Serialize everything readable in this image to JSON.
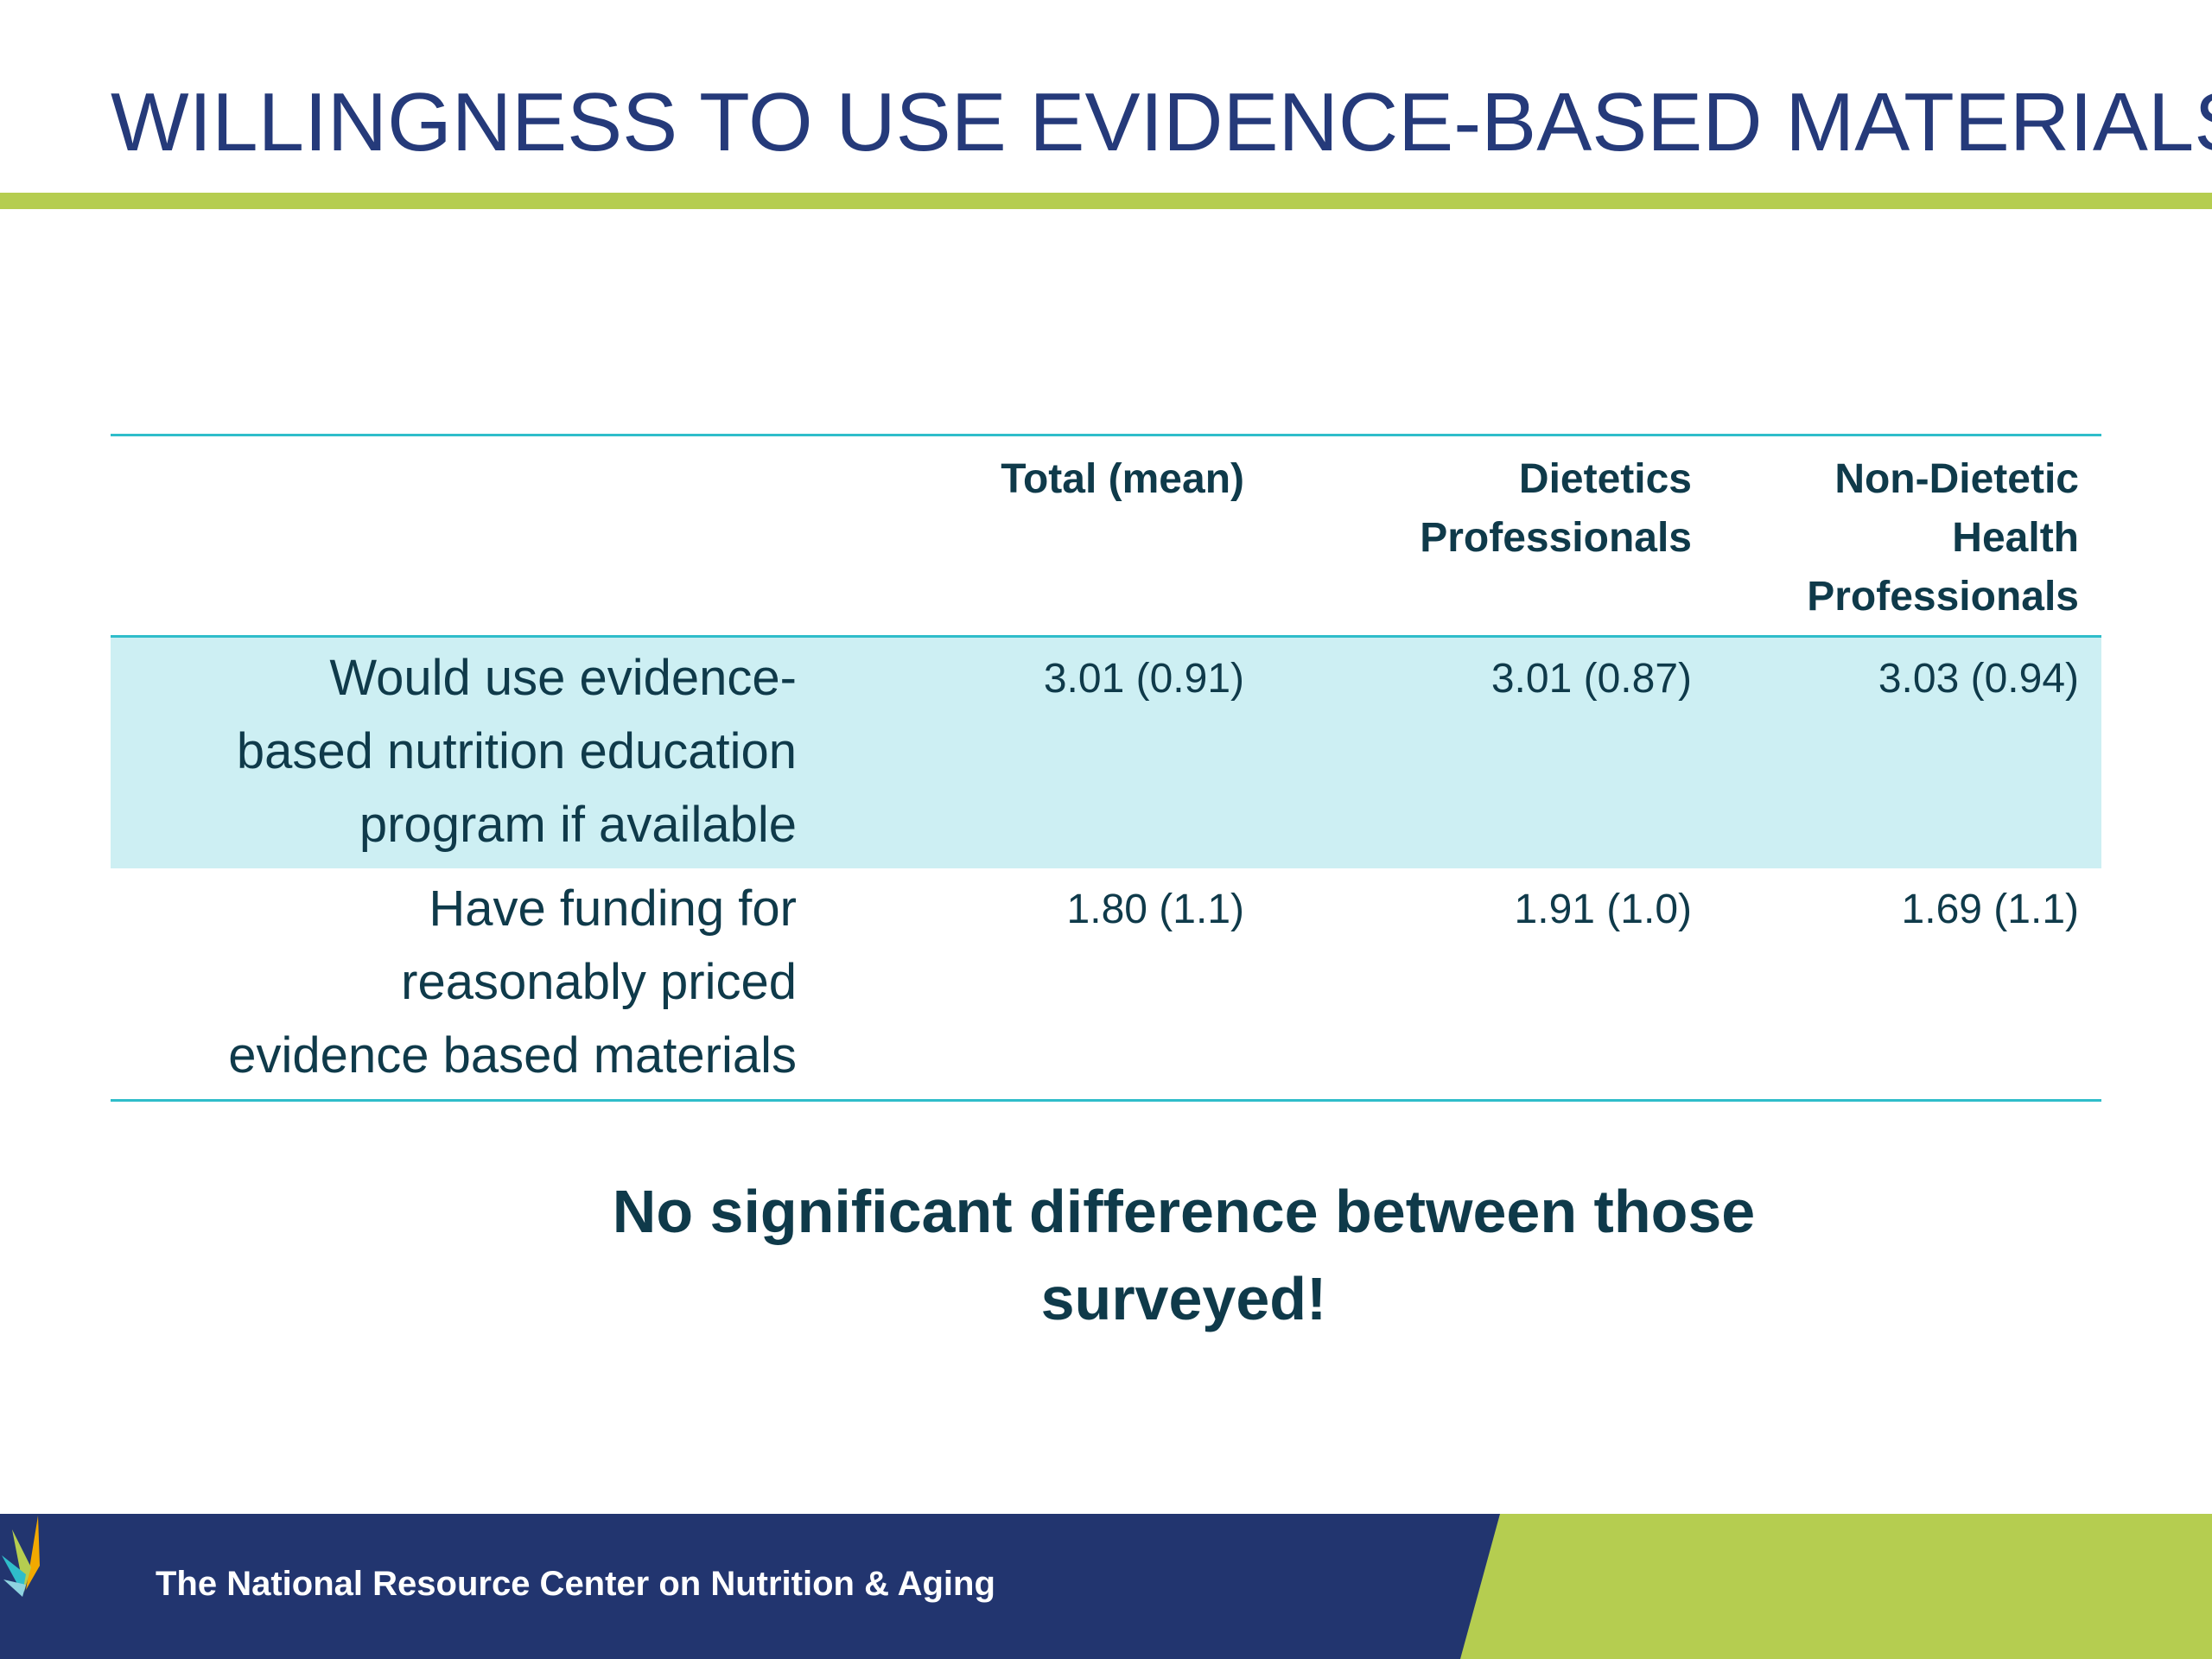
{
  "slide": {
    "title": "WILLINGNESS TO USE EVIDENCE-BASED MATERIALS"
  },
  "table": {
    "headers": {
      "label": "",
      "total": "Total (mean)",
      "dietetics_line1": "Dietetics",
      "dietetics_line2": "Professionals",
      "non_dietetic_line1": "Non-Dietetic Health",
      "non_dietetic_line2": "Professionals"
    },
    "rows": [
      {
        "label_line1": "Would use evidence-",
        "label_line2": "based nutrition education",
        "label_line3": "program if available",
        "total": "3.01 (0.91)",
        "dietetics": "3.01 (0.87)",
        "non_dietetic": "3.03 (0.94)"
      },
      {
        "label_line1": "Have funding for",
        "label_line2": "reasonably priced",
        "label_line3": "evidence based materials",
        "total": "1.80 (1.1)",
        "dietetics": "1.91 (1.0)",
        "non_dietetic": "1.69 (1.1)"
      }
    ]
  },
  "conclusion": {
    "line1": "No significant difference between those",
    "line2": "surveyed!"
  },
  "footer": {
    "organization": "The National Resource Center on Nutrition & Aging"
  },
  "colors": {
    "title": "#253a7a",
    "accent_green": "#b5cd50",
    "table_rule": "#2fbdca",
    "row_shade": "#cdeff3",
    "text_dark": "#0f3a4a",
    "footer_navy": "#22356f"
  },
  "icons": {
    "footer_logo": "leaf-fan-logo"
  }
}
